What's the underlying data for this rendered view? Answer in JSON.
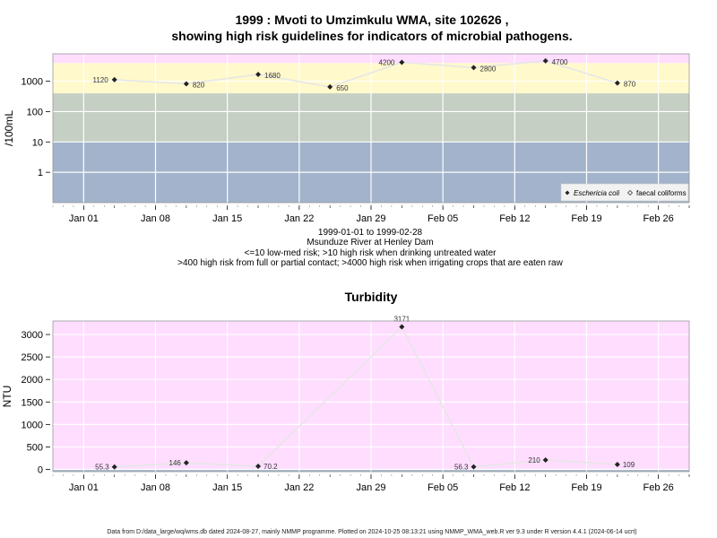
{
  "top": {
    "title_line1": "1999 : Mvoti to Umzimkulu WMA, site 102626 ,",
    "title_line2": "showing high risk guidelines for indicators of microbial pathogens.",
    "ylabel": "/100mL",
    "notes": [
      "1999-01-01 to 1999-02-28",
      "Msunduze River at Henley Dam",
      "<=10 low-med risk; >10 high risk when drinking untreated water",
      ">400 high risk from full or partial contact; >4000 high risk when irrigating crops that are eaten raw"
    ],
    "legend": {
      "series1": "Eschericia coli",
      "series2": "faecal coliforms"
    }
  },
  "bottom": {
    "title": "Turbidity",
    "ylabel": "NTU"
  },
  "footer": "Data from D:/data_large/wq/wms.db dated 2024-08-27, mainly NMMP programme. Plotted on 2024-10-25 08:13:21 using NMMP_WMA_web.R ver 9.3 under R version 4.4.1 (2024-06-14 ucrt)",
  "colors": {
    "band_pink": "#ffddff",
    "band_yellow": "#fff9cc",
    "band_green": "#c5cfc3",
    "band_blue": "#a2b3cb",
    "line": "#e6e6e6",
    "point": "#222222"
  },
  "chart_data": [
    {
      "type": "line",
      "title": "1999 : Mvoti to Umzimkulu WMA, site 102626 , showing high risk guidelines for indicators of microbial pathogens.",
      "ylabel": "/100mL",
      "yscale": "log",
      "ylim": [
        0.1,
        8000
      ],
      "xlim": [
        "1998-12-29",
        "1999-03-01"
      ],
      "x_ticks": [
        "Jan 01",
        "Jan 08",
        "Jan 15",
        "Jan 22",
        "Jan 29",
        "Feb 05",
        "Feb 12",
        "Feb 19",
        "Feb 26"
      ],
      "y_ticks": [
        "1",
        "10",
        "100",
        "1000"
      ],
      "bands": [
        {
          "from": 0.1,
          "to": 10,
          "color": "#a2b3cb"
        },
        {
          "from": 10,
          "to": 400,
          "color": "#c5cfc3"
        },
        {
          "from": 400,
          "to": 4000,
          "color": "#fff9cc"
        },
        {
          "from": 4000,
          "to": 8000,
          "color": "#ffddff"
        }
      ],
      "series": [
        {
          "name": "Eschericia coli",
          "x": [
            "1999-01-04",
            "1999-01-11",
            "1999-01-18",
            "1999-01-25",
            "1999-02-01",
            "1999-02-08",
            "1999-02-15",
            "1999-02-22"
          ],
          "y": [
            1120,
            820,
            1680,
            650,
            4200,
            2800,
            4700,
            870
          ],
          "labels": [
            "1120",
            "820",
            "1680",
            "650",
            "4200",
            "2800",
            "4700",
            "870"
          ]
        }
      ],
      "legend": [
        "Eschericia coli",
        "faecal coliforms"
      ],
      "legend_position": "bottom-right"
    },
    {
      "type": "line",
      "title": "Turbidity",
      "ylabel": "NTU",
      "ylim": [
        -50,
        3300
      ],
      "xlim": [
        "1998-12-29",
        "1999-03-01"
      ],
      "x_ticks": [
        "Jan 01",
        "Jan 08",
        "Jan 15",
        "Jan 22",
        "Jan 29",
        "Feb 05",
        "Feb 12",
        "Feb 19",
        "Feb 26"
      ],
      "y_ticks": [
        "0",
        "500",
        "1000",
        "1500",
        "2000",
        "2500",
        "3000"
      ],
      "series": [
        {
          "name": "Turbidity",
          "x": [
            "1999-01-04",
            "1999-01-11",
            "1999-01-18",
            "1999-02-01",
            "1999-02-08",
            "1999-02-15",
            "1999-02-22"
          ],
          "y": [
            55.3,
            146,
            70.2,
            3171,
            56.3,
            210,
            109
          ],
          "labels": [
            "55.3",
            "146",
            "70.2",
            "3171",
            "56.3",
            "210",
            "109"
          ]
        }
      ]
    }
  ]
}
